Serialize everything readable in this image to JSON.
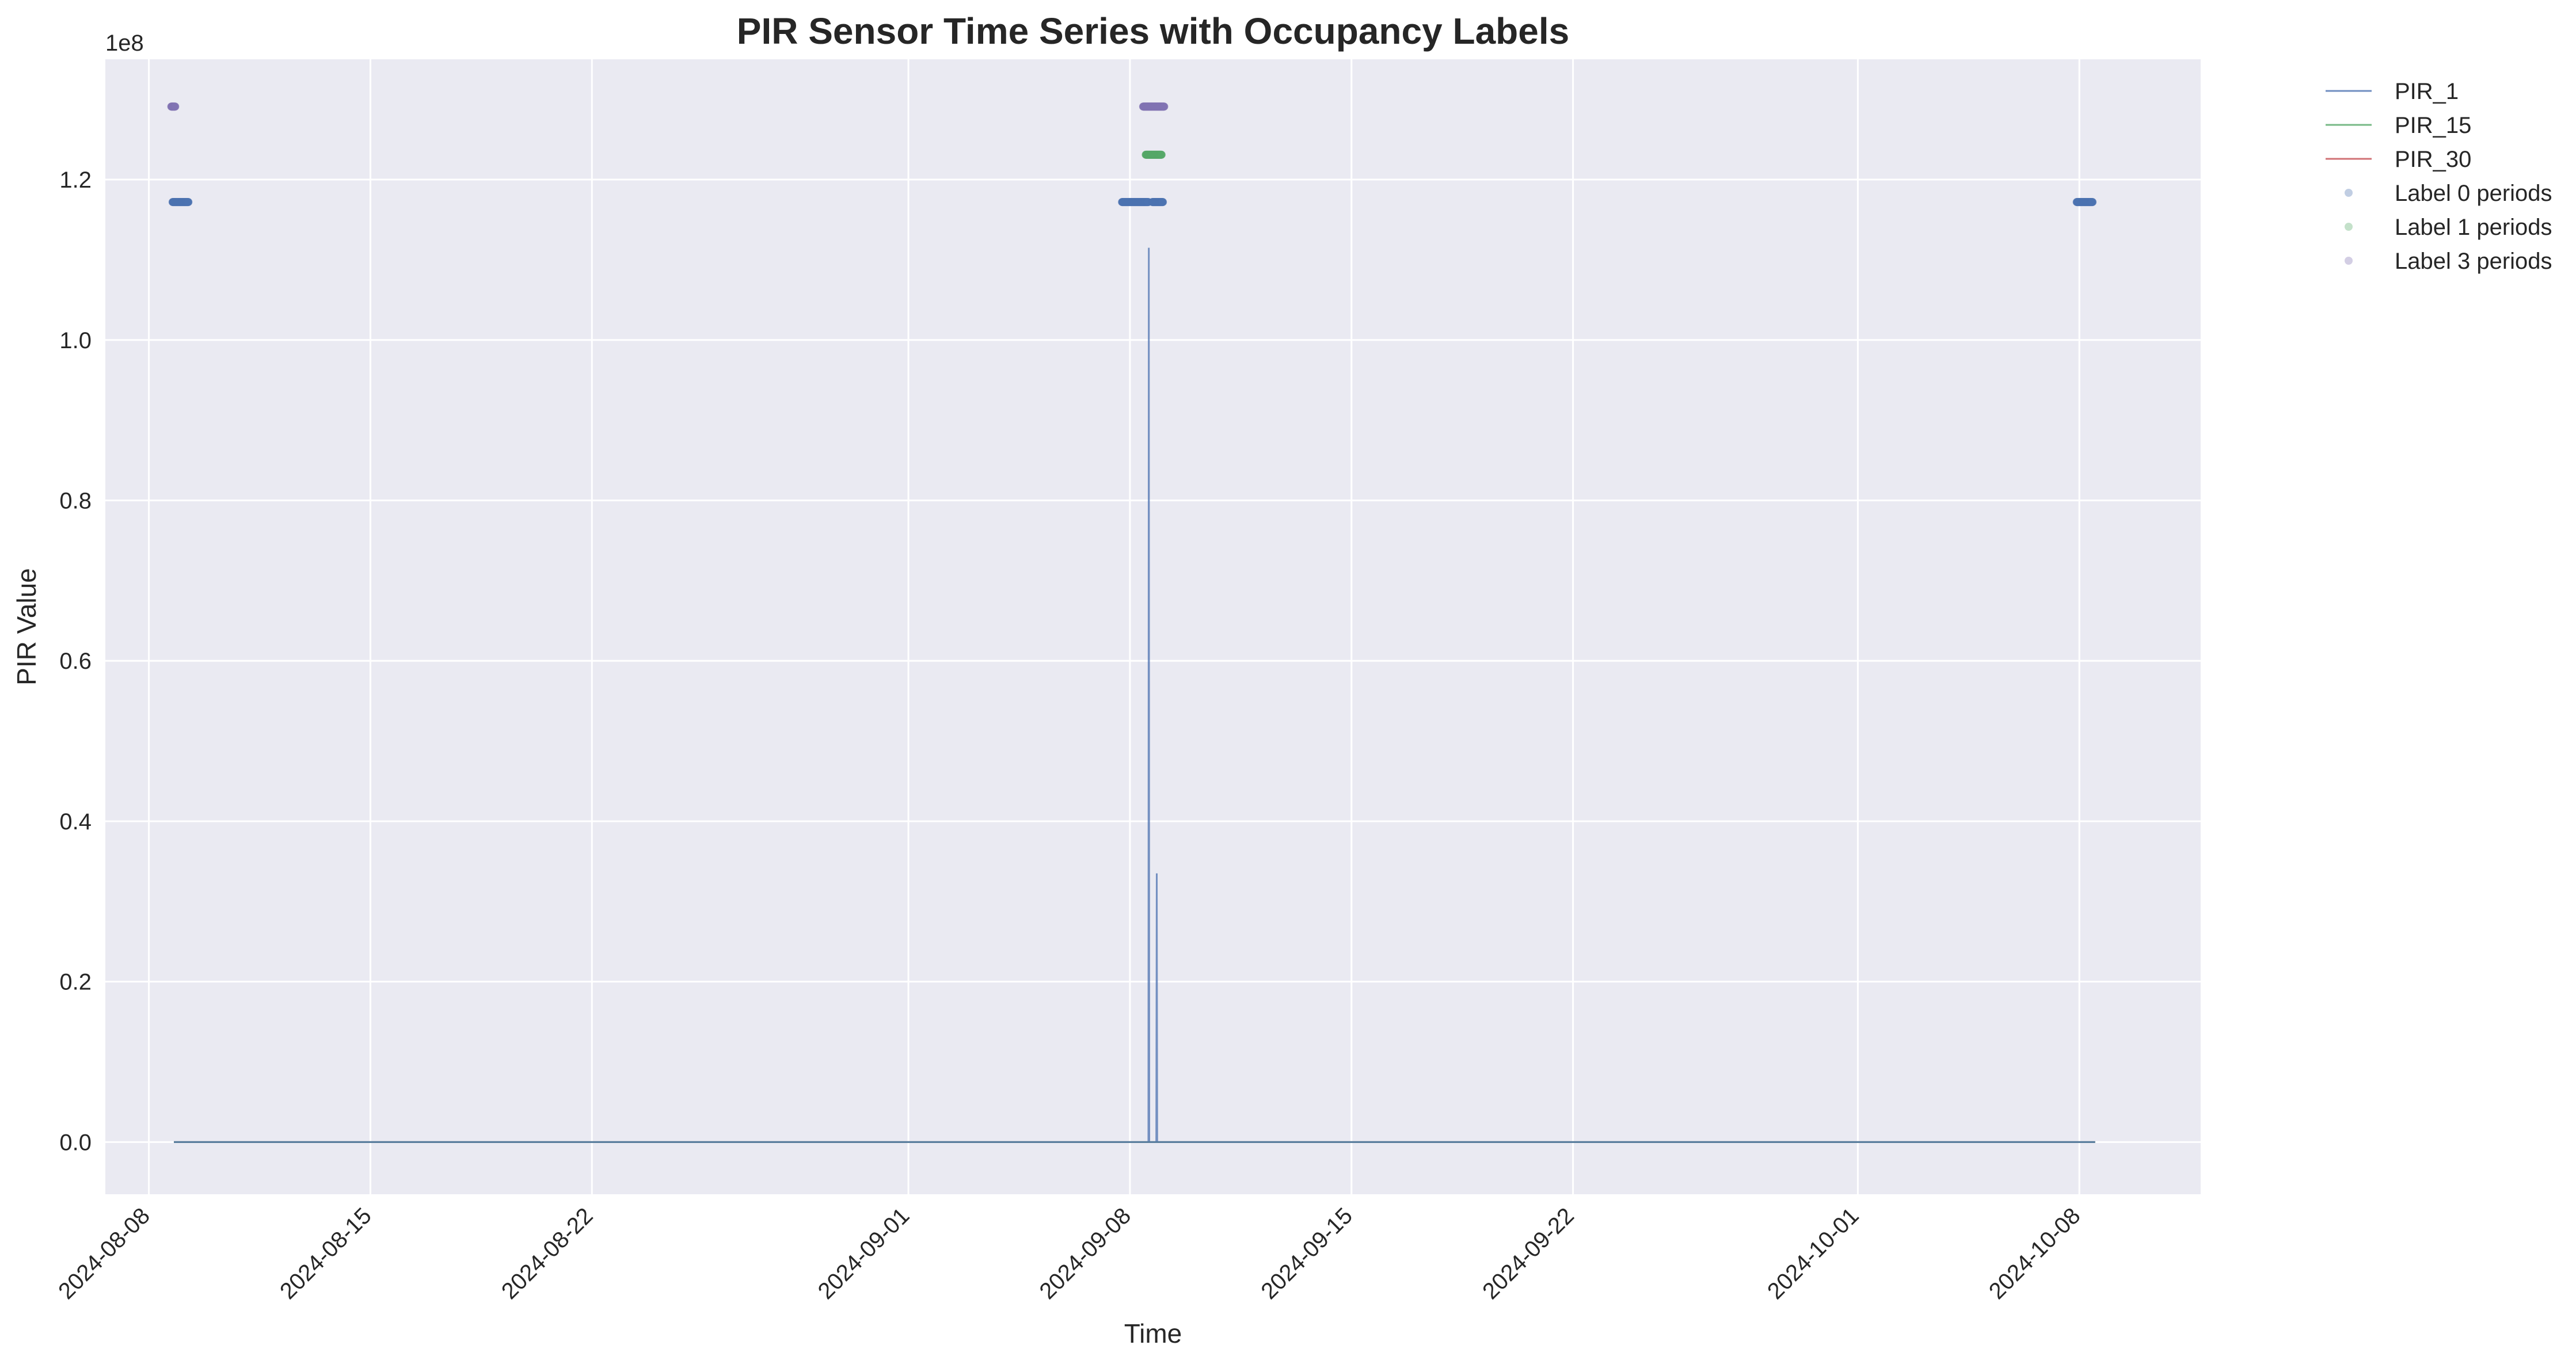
{
  "chart_data": {
    "type": "line",
    "title": "PIR Sensor Time Series with Occupancy Labels",
    "xlabel": "Time",
    "ylabel": "PIR Value",
    "y_offset_label": "1e8",
    "ylim": [
      -6500000,
      135000000
    ],
    "xlim": [
      "2024-08-06T15:00",
      "2024-10-11T20:00"
    ],
    "x_ticks": [
      "2024-08-08",
      "2024-08-15",
      "2024-08-22",
      "2024-09-01",
      "2024-09-08",
      "2024-09-15",
      "2024-09-22",
      "2024-10-01",
      "2024-10-08"
    ],
    "y_ticks": [
      0,
      20000000,
      40000000,
      60000000,
      80000000,
      100000000,
      120000000
    ],
    "y_tick_labels": [
      "0.0",
      "0.2",
      "0.4",
      "0.6",
      "0.8",
      "1.0",
      "1.2"
    ],
    "grid": true,
    "legend_position": "outside-top-right",
    "series": [
      {
        "name": "PIR_1",
        "kind": "line",
        "color": "#4c72b0",
        "points": [
          [
            "2024-08-08T19:00",
            0
          ],
          [
            "2024-09-08T14:00",
            0
          ],
          [
            "2024-09-08T14:20",
            111500000
          ],
          [
            "2024-09-08T14:40",
            0
          ],
          [
            "2024-09-08T20:00",
            0
          ],
          [
            "2024-09-08T20:20",
            33500000
          ],
          [
            "2024-09-08T20:40",
            0
          ],
          [
            "2024-10-08T12:00",
            0
          ]
        ]
      },
      {
        "name": "PIR_15",
        "kind": "line",
        "color": "#55a868",
        "points": [
          [
            "2024-08-08T19:00",
            0
          ],
          [
            "2024-10-08T12:00",
            0
          ]
        ]
      },
      {
        "name": "PIR_30",
        "kind": "line",
        "color": "#c44e52",
        "points": [
          [
            "2024-08-08T19:00",
            0
          ],
          [
            "2024-10-08T12:00",
            0
          ]
        ]
      },
      {
        "name": "Label 0 periods",
        "kind": "scatter",
        "color": "#4c72b0",
        "y": 117200000,
        "ranges": [
          [
            "2024-08-08T18:00",
            "2024-08-09T06:00"
          ],
          [
            "2024-09-07T18:00",
            "2024-09-08T14:00"
          ],
          [
            "2024-09-08T17:00",
            "2024-09-09T01:00"
          ],
          [
            "2024-10-07T22:00",
            "2024-10-08T10:00"
          ]
        ]
      },
      {
        "name": "Label 1 periods",
        "kind": "scatter",
        "color": "#55a868",
        "y": 123100000,
        "ranges": [
          [
            "2024-09-08T12:00",
            "2024-09-09T00:00"
          ]
        ]
      },
      {
        "name": "Label 3 periods",
        "kind": "scatter",
        "color": "#8172b3",
        "y": 129100000,
        "ranges": [
          [
            "2024-08-08T17:00",
            "2024-08-08T20:00"
          ],
          [
            "2024-09-08T10:00",
            "2024-09-09T02:00"
          ]
        ]
      }
    ]
  }
}
